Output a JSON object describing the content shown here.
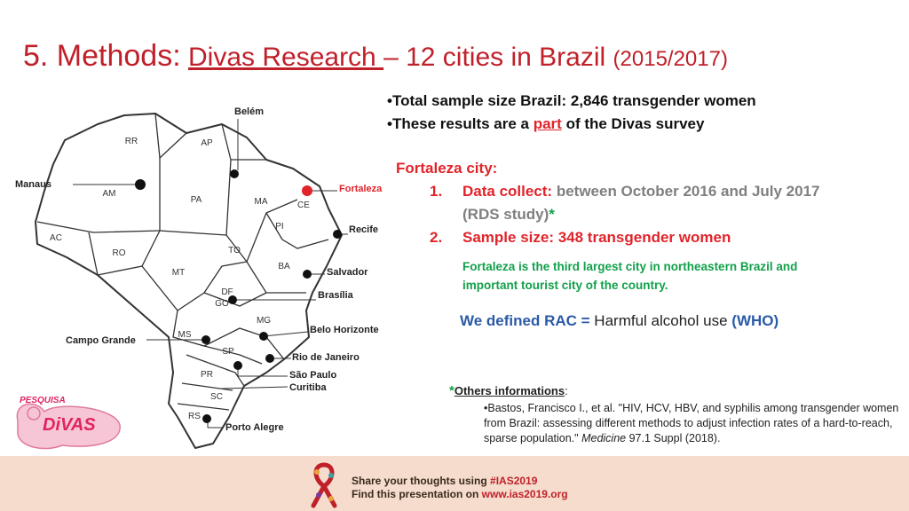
{
  "title": {
    "part1": "5. Methods:",
    "part2": "Divas Research ",
    "part3": "– 12 cities in Brazil",
    "part4": "(2015/2017)"
  },
  "bullets": {
    "b1": "•Total sample size Brazil: 2,846 transgender women",
    "b2_pre": "•These results are a ",
    "b2_link": "part",
    "b2_post": " of the Divas survey"
  },
  "fortaleza": {
    "heading": "Fortaleza city:",
    "item1_num": "1.",
    "item1_label": "Data collect:",
    "item1_text": " between October 2016 and July 2017",
    "item1_line2": "(RDS study)",
    "item1_star": "*",
    "item2_num": "2.",
    "item2_text": "Sample size: 348 transgender women",
    "note": "Fortaleza is the third largest city in northeastern Brazil and important tourist city of the country."
  },
  "rac": {
    "pre": "We defined RAC",
    "eq": " = ",
    "text": "Harmful  alcohol use ",
    "paren_open": "(",
    "who": "WHO)"
  },
  "other": {
    "star": "*",
    "label": "Others informations",
    "colon": ":",
    "ref_pre": "•Bastos, Francisco I., et al. \"HIV, HCV, HBV, and syphilis among transgender women from Brazil: assessing different methods to adjust infection rates of a hard-to-reach, sparse population.\" ",
    "ref_journal": "Medicine",
    "ref_post": " 97.1 Suppl (2018)."
  },
  "map": {
    "states": [
      "RR",
      "AP",
      "AM",
      "PA",
      "MA",
      "CE",
      "PI",
      "AC",
      "RO",
      "TO",
      "BA",
      "MT",
      "DF",
      "GO",
      "MG",
      "MS",
      "SP",
      "PR",
      "SC",
      "RS"
    ],
    "cities": [
      "Belém",
      "Manaus",
      "Fortaleza",
      "Recife",
      "Salvador",
      "Brasília",
      "Belo Horizonte",
      "Campo Grande",
      "Rio de Janeiro",
      "São Paulo",
      "Curitiba",
      "Porto Alegre"
    ]
  },
  "logo": {
    "top": "PESQUISA",
    "bottom": "DiVAS"
  },
  "footer": {
    "line1_pre": "Share your thoughts using ",
    "line1_tag": "#IAS2019",
    "line2_pre": "Find this presentation on ",
    "line2_url": "www.ias2019.org"
  },
  "colors": {
    "title_red": "#c0202a",
    "accent_red": "#e0242a",
    "green": "#12a04b",
    "blue": "#2b5aa8",
    "footer_bg": "#f5dccd"
  }
}
